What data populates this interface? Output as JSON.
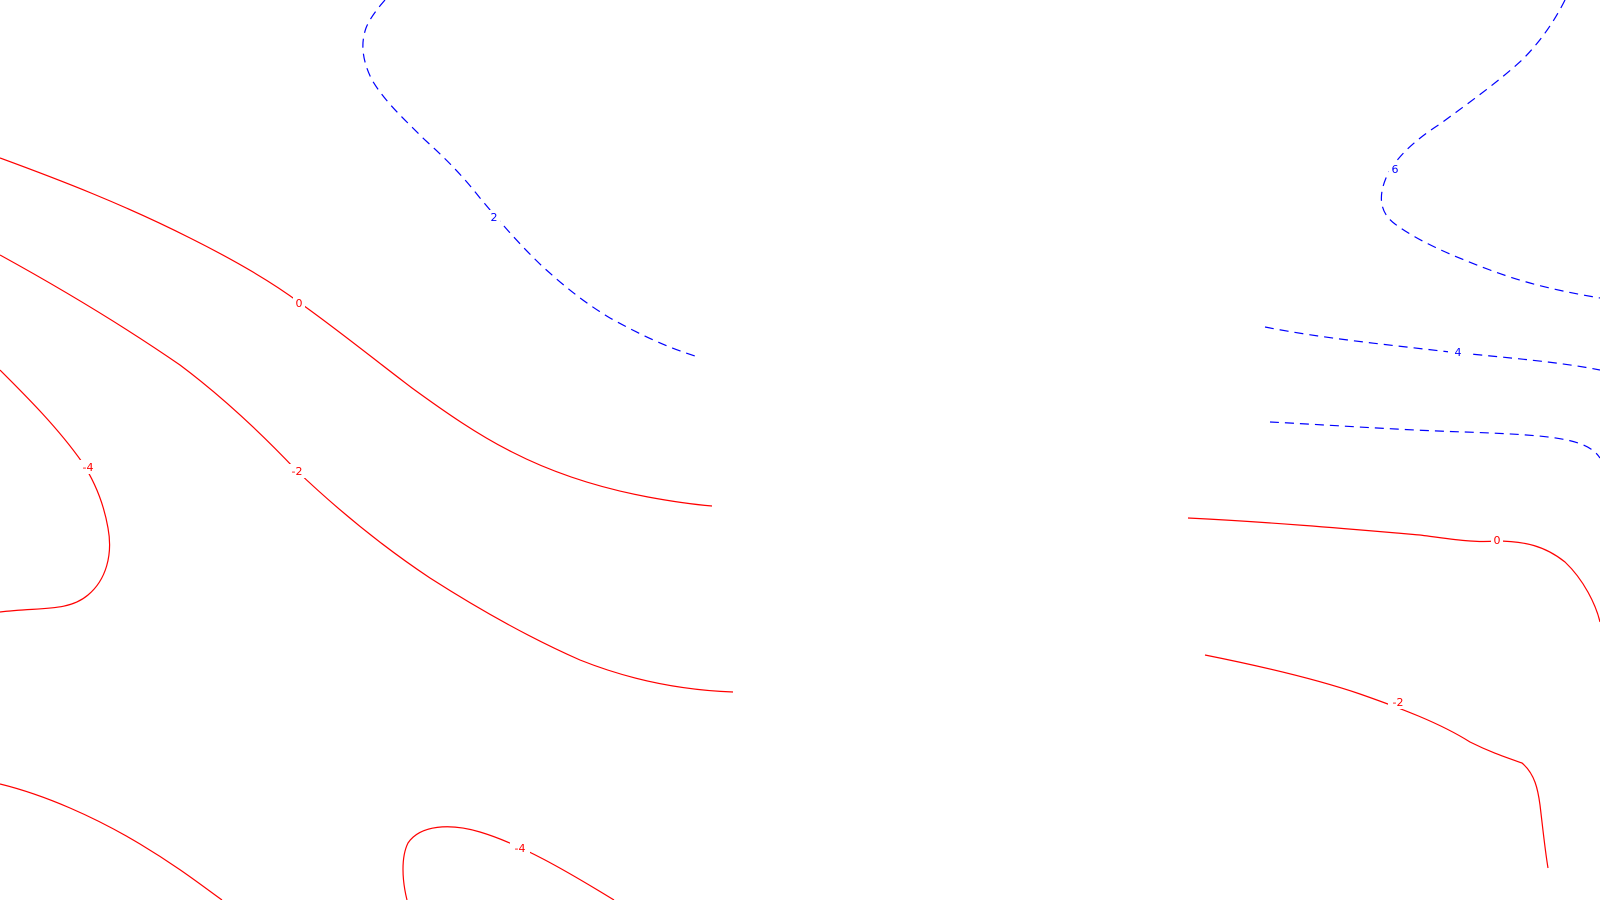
{
  "map": {
    "colors": {
      "background": "#ffffff",
      "nonpositive_contour": "#ff0000",
      "positive_contour": "#0000ff"
    },
    "contours": [
      {
        "level": 2,
        "label": "2",
        "style": "dashed",
        "color": "#0000ff"
      },
      {
        "level": 0,
        "label": "0",
        "style": "solid",
        "color": "#ff0000"
      },
      {
        "level": -2,
        "label": "-2",
        "style": "solid",
        "color": "#ff0000"
      },
      {
        "level": -4,
        "label": "-4",
        "style": "solid",
        "color": "#ff0000"
      },
      {
        "level": -4,
        "label": "-4",
        "style": "solid",
        "color": "#ff0000"
      },
      {
        "level": 6,
        "label": "6",
        "style": "dashed",
        "color": "#0000ff"
      },
      {
        "level": 4,
        "label": "4",
        "style": "dashed",
        "color": "#0000ff"
      },
      {
        "level": 0,
        "label": "0",
        "style": "solid",
        "color": "#ff0000"
      },
      {
        "level": -2,
        "label": "-2",
        "style": "solid",
        "color": "#ff0000"
      }
    ]
  }
}
